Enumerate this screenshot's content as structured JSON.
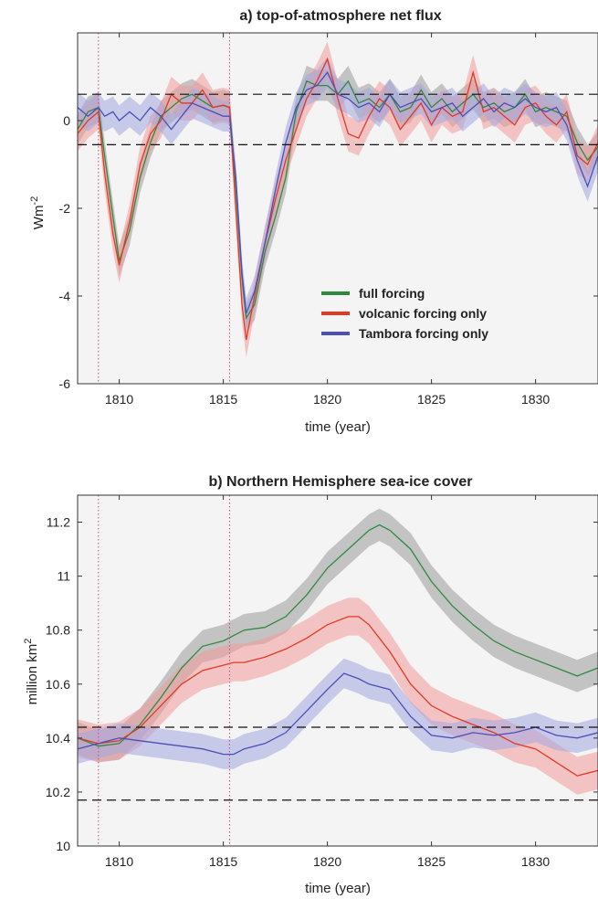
{
  "chart_data": [
    {
      "type": "line",
      "title": "a) top-of-atmosphere net flux",
      "xlabel": "time (year)",
      "ylabel": "Wm",
      "ylabel_superscript": "-2",
      "xlim": [
        1808,
        1833
      ],
      "ylim": [
        -6,
        2
      ],
      "xticks": [
        "1810",
        "1815",
        "1820",
        "1825",
        "1830"
      ],
      "yticks": [
        "-6",
        "-4",
        "-2",
        "0"
      ],
      "grid": false,
      "legend_position": "lower-right",
      "eruption_lines": [
        1809,
        1815.3
      ],
      "reference_range": [
        -0.55,
        0.6
      ],
      "series": [
        {
          "name": "full forcing",
          "color": "#2e8b3e",
          "band_color": "#9a9a9a",
          "x": [
            1808,
            1808.5,
            1809,
            1809.3,
            1809.7,
            1810,
            1810.5,
            1811,
            1811.5,
            1812,
            1812.5,
            1813,
            1813.5,
            1814,
            1814.5,
            1815,
            1815.3,
            1815.6,
            1815.9,
            1816.1,
            1816.5,
            1817,
            1817.5,
            1818,
            1818.5,
            1819,
            1819.5,
            1820,
            1820.5,
            1821,
            1821.5,
            1822,
            1822.5,
            1823,
            1823.5,
            1824,
            1824.5,
            1825,
            1825.5,
            1826,
            1826.5,
            1827,
            1827.5,
            1828,
            1828.5,
            1829,
            1829.5,
            1830,
            1830.5,
            1831,
            1831.5,
            1832,
            1832.5,
            1833
          ],
          "values": [
            -0.2,
            0.2,
            0.3,
            -0.8,
            -2.2,
            -3.2,
            -2.5,
            -1.3,
            -0.5,
            0.1,
            0.3,
            0.5,
            0.6,
            0.45,
            0.3,
            0.35,
            0.3,
            -1.5,
            -3.6,
            -4.5,
            -4.2,
            -3.0,
            -2.2,
            -1.3,
            0.2,
            0.9,
            0.8,
            0.8,
            0.6,
            0.9,
            0.4,
            0.5,
            0.3,
            0.6,
            0.2,
            0.3,
            0.7,
            0.3,
            0.5,
            0.2,
            0.4,
            0.6,
            0.3,
            0.4,
            0.2,
            0.3,
            0.6,
            0.2,
            0.3,
            0.2,
            0.1,
            -0.5,
            -0.9,
            -0.6
          ],
          "band_halfwidth": 0.35
        },
        {
          "name": "volcanic forcing only",
          "color": "#e03a22",
          "band_color": "#f29a9a",
          "x": [
            1808,
            1808.5,
            1809,
            1809.3,
            1809.7,
            1810,
            1810.5,
            1811,
            1811.5,
            1812,
            1812.5,
            1813,
            1813.5,
            1814,
            1814.5,
            1815,
            1815.3,
            1815.6,
            1815.9,
            1816.1,
            1816.5,
            1817,
            1817.5,
            1818,
            1818.5,
            1819,
            1819.5,
            1820,
            1820.5,
            1821,
            1821.5,
            1822,
            1822.5,
            1823,
            1823.5,
            1824,
            1824.5,
            1825,
            1825.5,
            1826,
            1826.5,
            1827,
            1827.5,
            1828,
            1828.5,
            1829,
            1829.5,
            1830,
            1830.5,
            1831,
            1831.5,
            1832,
            1832.5,
            1833
          ],
          "values": [
            -0.3,
            0.0,
            0.2,
            -1.2,
            -2.6,
            -3.3,
            -2.3,
            -1.0,
            -0.3,
            0.0,
            0.6,
            0.4,
            0.4,
            0.7,
            0.3,
            0.35,
            0.3,
            -2.0,
            -4.2,
            -5.0,
            -4.0,
            -2.8,
            -1.8,
            -0.9,
            -0.2,
            0.5,
            0.9,
            1.4,
            0.5,
            -0.3,
            -0.4,
            0.1,
            0.5,
            0.3,
            -0.2,
            0.1,
            0.4,
            -0.1,
            0.3,
            0.1,
            0.2,
            1.1,
            0.2,
            0.3,
            0.1,
            -0.1,
            0.3,
            0.4,
            0.1,
            -0.1,
            0.2,
            -0.8,
            -1.0,
            -0.5
          ],
          "band_halfwidth": 0.4
        },
        {
          "name": "Tambora forcing only",
          "color": "#4b4fb8",
          "band_color": "#a3a6e0",
          "x": [
            1808,
            1808.5,
            1809,
            1809.3,
            1809.7,
            1810,
            1810.5,
            1811,
            1811.5,
            1812,
            1812.5,
            1813,
            1813.5,
            1814,
            1814.5,
            1815,
            1815.3,
            1815.6,
            1815.9,
            1816.1,
            1816.5,
            1817,
            1817.5,
            1818,
            1818.5,
            1819,
            1819.5,
            1820,
            1820.5,
            1821,
            1821.5,
            1822,
            1822.5,
            1823,
            1823.5,
            1824,
            1824.5,
            1825,
            1825.5,
            1826,
            1826.5,
            1827,
            1827.5,
            1828,
            1828.5,
            1829,
            1829.5,
            1830,
            1830.5,
            1831,
            1831.5,
            1832,
            1832.5,
            1833
          ],
          "values": [
            0.3,
            0.1,
            0.3,
            0.1,
            0.2,
            0.0,
            0.2,
            0.0,
            0.3,
            0.1,
            -0.2,
            0.1,
            0.4,
            0.3,
            0.2,
            0.1,
            0.1,
            -1.3,
            -3.5,
            -4.4,
            -3.9,
            -2.8,
            -1.6,
            -0.5,
            0.3,
            0.7,
            0.8,
            1.1,
            0.6,
            0.5,
            0.3,
            0.4,
            0.2,
            0.6,
            0.3,
            0.4,
            0.5,
            0.2,
            0.3,
            0.4,
            0.1,
            0.3,
            0.5,
            0.2,
            0.4,
            0.3,
            0.5,
            0.3,
            0.2,
            0.3,
            -0.1,
            -0.9,
            -1.5,
            -0.8
          ],
          "band_halfwidth": 0.35
        }
      ]
    },
    {
      "type": "line",
      "title": "b) Northern Hemisphere sea-ice cover",
      "xlabel": "time (year)",
      "ylabel": "million km",
      "ylabel_superscript": "2",
      "xlim": [
        1808,
        1833
      ],
      "ylim": [
        10,
        11.3
      ],
      "xticks": [
        "1810",
        "1815",
        "1820",
        "1825",
        "1830"
      ],
      "yticks": [
        "10",
        "10.2",
        "10.4",
        "10.6",
        "10.8",
        "11",
        "11.2"
      ],
      "grid": false,
      "eruption_lines": [
        1809,
        1815.3
      ],
      "reference_range": [
        10.17,
        10.44
      ],
      "series": [
        {
          "name": "full forcing",
          "color": "#2e8b3e",
          "band_color": "#9a9a9a",
          "x": [
            1808,
            1809,
            1810,
            1811,
            1812,
            1813,
            1814,
            1815,
            1815.5,
            1816,
            1817,
            1818,
            1819,
            1820,
            1821,
            1822,
            1822.5,
            1823,
            1824,
            1825,
            1826,
            1827,
            1828,
            1829,
            1830,
            1831,
            1832,
            1833
          ],
          "values": [
            10.4,
            10.37,
            10.38,
            10.45,
            10.55,
            10.66,
            10.74,
            10.76,
            10.78,
            10.8,
            10.81,
            10.85,
            10.93,
            11.03,
            11.1,
            11.17,
            11.19,
            11.17,
            11.1,
            10.98,
            10.89,
            10.82,
            10.76,
            10.72,
            10.69,
            10.66,
            10.63,
            10.66
          ],
          "band_halfwidth": 0.06
        },
        {
          "name": "volcanic forcing only",
          "color": "#e03a22",
          "band_color": "#f29a9a",
          "x": [
            1808,
            1809,
            1810,
            1811,
            1812,
            1813,
            1814,
            1815,
            1815.5,
            1816,
            1817,
            1818,
            1819,
            1820,
            1821,
            1821.5,
            1822,
            1823,
            1824,
            1825,
            1826,
            1827,
            1828,
            1829,
            1830,
            1831,
            1832,
            1833
          ],
          "values": [
            10.4,
            10.38,
            10.39,
            10.44,
            10.52,
            10.6,
            10.65,
            10.67,
            10.68,
            10.68,
            10.7,
            10.73,
            10.77,
            10.82,
            10.85,
            10.85,
            10.82,
            10.72,
            10.6,
            10.52,
            10.48,
            10.45,
            10.42,
            10.38,
            10.36,
            10.31,
            10.26,
            10.28
          ],
          "band_halfwidth": 0.07
        },
        {
          "name": "Tambora forcing only",
          "color": "#4b4fb8",
          "band_color": "#a3a6e0",
          "x": [
            1808,
            1809,
            1810,
            1811,
            1812,
            1813,
            1814,
            1815,
            1815.5,
            1816,
            1817,
            1818,
            1819,
            1820,
            1820.8,
            1821.5,
            1822,
            1823,
            1824,
            1825,
            1826,
            1827,
            1828,
            1829,
            1830,
            1831,
            1832,
            1833
          ],
          "values": [
            10.36,
            10.38,
            10.4,
            10.39,
            10.38,
            10.37,
            10.36,
            10.34,
            10.34,
            10.36,
            10.38,
            10.42,
            10.5,
            10.58,
            10.64,
            10.62,
            10.6,
            10.58,
            10.48,
            10.41,
            10.4,
            10.42,
            10.41,
            10.42,
            10.44,
            10.41,
            10.4,
            10.42
          ],
          "band_halfwidth": 0.055
        }
      ]
    }
  ]
}
